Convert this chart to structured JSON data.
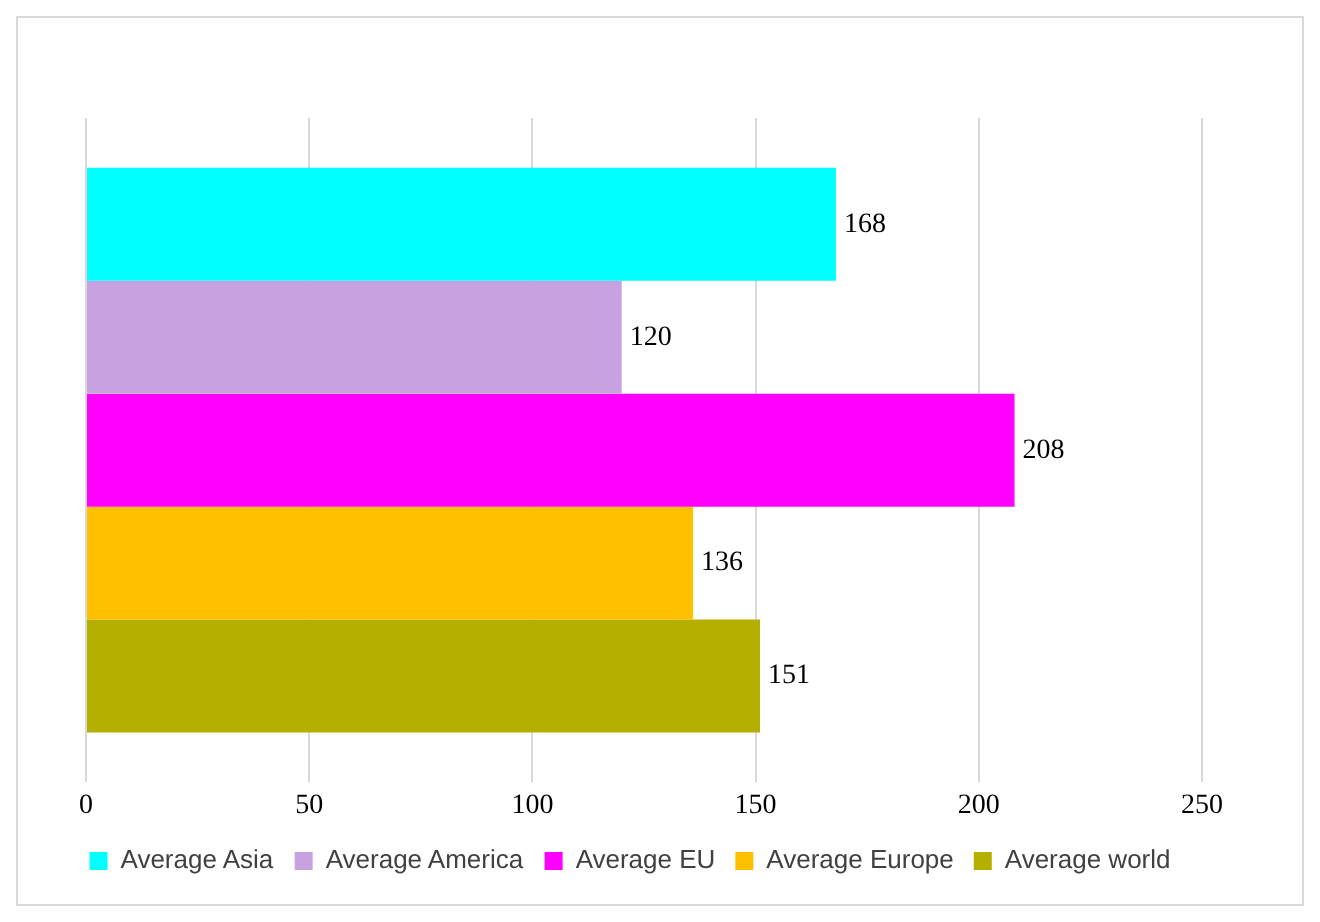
{
  "chart_data": {
    "type": "bar",
    "orientation": "horizontal",
    "categories": [
      null
    ],
    "series": [
      {
        "name": "Average Asia",
        "color": "#00ffff",
        "values": [
          168
        ]
      },
      {
        "name": "Average America",
        "color": "#c8a2e0",
        "values": [
          120
        ]
      },
      {
        "name": "Average EU",
        "color": "#ff00ff",
        "values": [
          208
        ]
      },
      {
        "name": "Average Europe",
        "color": "#ffc000",
        "values": [
          136
        ]
      },
      {
        "name": "Average world",
        "color": "#b5b000",
        "values": [
          151
        ]
      }
    ],
    "xlim": [
      0,
      250
    ],
    "xticks": [
      0,
      50,
      100,
      150,
      200,
      250
    ],
    "grid": "x",
    "legend": "bottom",
    "data_labels": true
  }
}
